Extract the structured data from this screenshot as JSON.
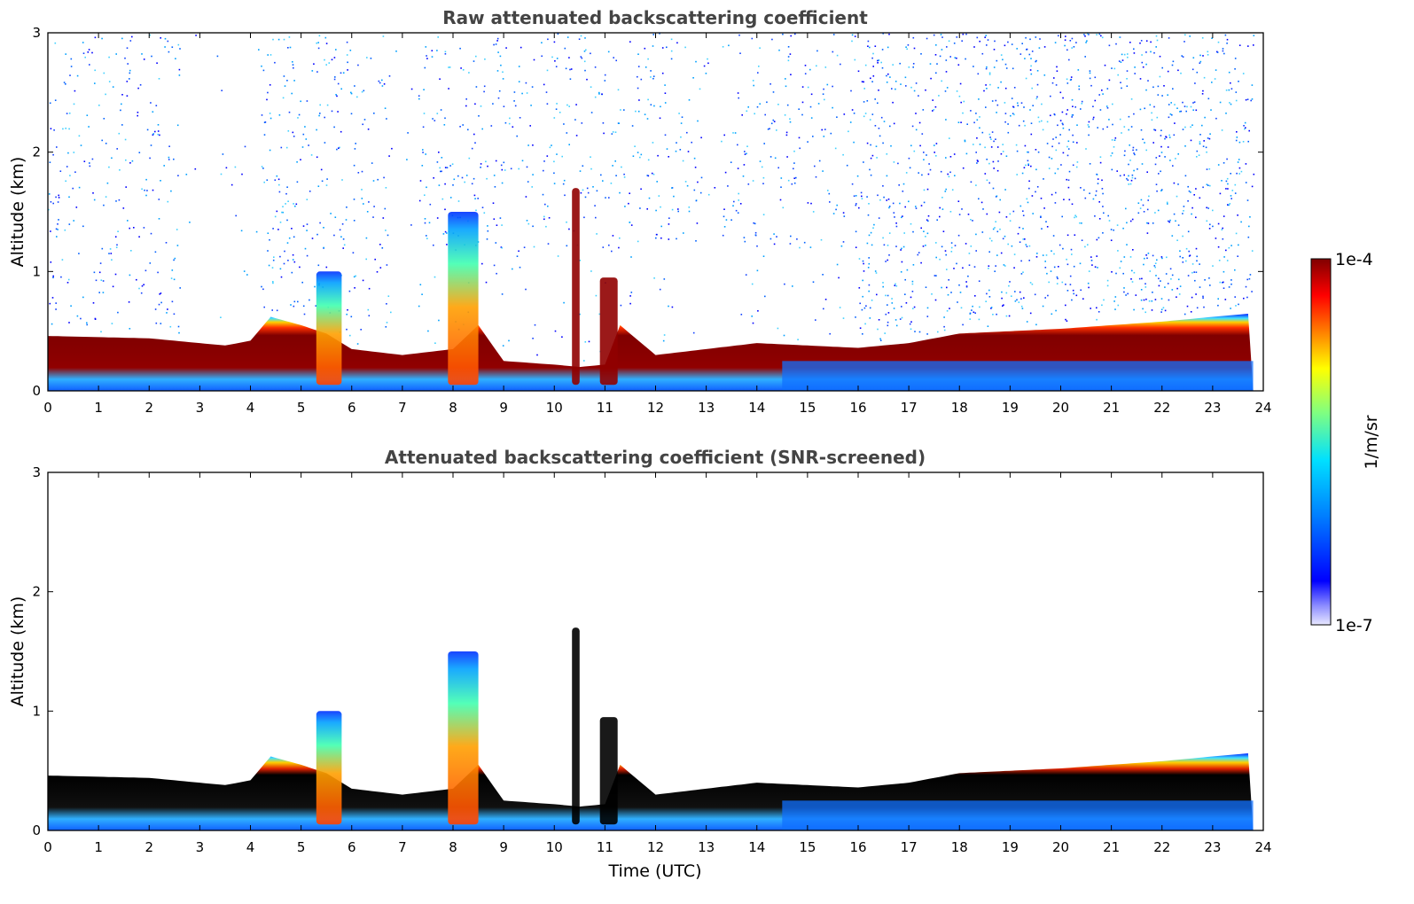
{
  "chart_data": [
    {
      "type": "heatmap",
      "title": "Raw attenuated backscattering coefficient",
      "xlabel": "",
      "ylabel": "Altitude (km)",
      "xlim": [
        0,
        24
      ],
      "ylim": [
        0,
        3
      ],
      "xticks": [
        "0",
        "1",
        "2",
        "3",
        "4",
        "5",
        "6",
        "7",
        "8",
        "9",
        "10",
        "11",
        "12",
        "13",
        "14",
        "15",
        "16",
        "17",
        "18",
        "19",
        "20",
        "21",
        "22",
        "23",
        "24"
      ],
      "yticks": [
        "0",
        "1",
        "2",
        "3"
      ],
      "screened": false,
      "layer_top_km": [
        [
          0,
          0.46
        ],
        [
          1,
          0.45
        ],
        [
          2,
          0.44
        ],
        [
          3,
          0.4
        ],
        [
          3.5,
          0.38
        ],
        [
          4,
          0.42
        ],
        [
          4.4,
          0.62
        ],
        [
          5,
          0.55
        ],
        [
          5.5,
          0.48
        ],
        [
          6,
          0.35
        ],
        [
          7,
          0.3
        ],
        [
          8,
          0.35
        ],
        [
          8.5,
          0.55
        ],
        [
          9,
          0.25
        ],
        [
          10,
          0.22
        ],
        [
          10.5,
          0.2
        ],
        [
          11,
          0.22
        ],
        [
          11.3,
          0.55
        ],
        [
          12,
          0.3
        ],
        [
          13,
          0.35
        ],
        [
          14,
          0.4
        ],
        [
          15,
          0.38
        ],
        [
          16,
          0.36
        ],
        [
          17,
          0.4
        ],
        [
          18,
          0.48
        ],
        [
          19,
          0.5
        ],
        [
          20,
          0.52
        ],
        [
          21,
          0.55
        ],
        [
          22,
          0.58
        ],
        [
          23,
          0.62
        ],
        [
          23.8,
          0.65
        ]
      ],
      "features": [
        {
          "label": "aerosol plume",
          "x": [
            5.3,
            5.8
          ],
          "top_km": 1.0
        },
        {
          "label": "aerosol plume",
          "x": [
            7.9,
            8.5
          ],
          "top_km": 1.5
        },
        {
          "label": "cloud",
          "x": [
            10.35,
            10.5
          ],
          "top_km": 1.7
        },
        {
          "label": "cloud",
          "x": [
            10.9,
            11.25
          ],
          "top_km": 0.95
        }
      ]
    },
    {
      "type": "heatmap",
      "title": "Attenuated backscattering coefficient (SNR-screened)",
      "xlabel": "Time (UTC)",
      "ylabel": "Altitude (km)",
      "xlim": [
        0,
        24
      ],
      "ylim": [
        0,
        3
      ],
      "xticks": [
        "0",
        "1",
        "2",
        "3",
        "4",
        "5",
        "6",
        "7",
        "8",
        "9",
        "10",
        "11",
        "12",
        "13",
        "14",
        "15",
        "16",
        "17",
        "18",
        "19",
        "20",
        "21",
        "22",
        "23",
        "24"
      ],
      "yticks": [
        "0",
        "1",
        "2",
        "3"
      ],
      "screened": true
    }
  ],
  "colorbar": {
    "label": "1/m/sr",
    "max_label": "1e-4",
    "min_label": "1e-7",
    "scale": "log",
    "colormap": [
      "#0000aa",
      "#0000ff",
      "#0080ff",
      "#00ffff",
      "#80ff80",
      "#ffff00",
      "#ff8000",
      "#ff0000",
      "#800000"
    ]
  },
  "colors": {
    "title": "#444444",
    "background": "#ffffff"
  }
}
